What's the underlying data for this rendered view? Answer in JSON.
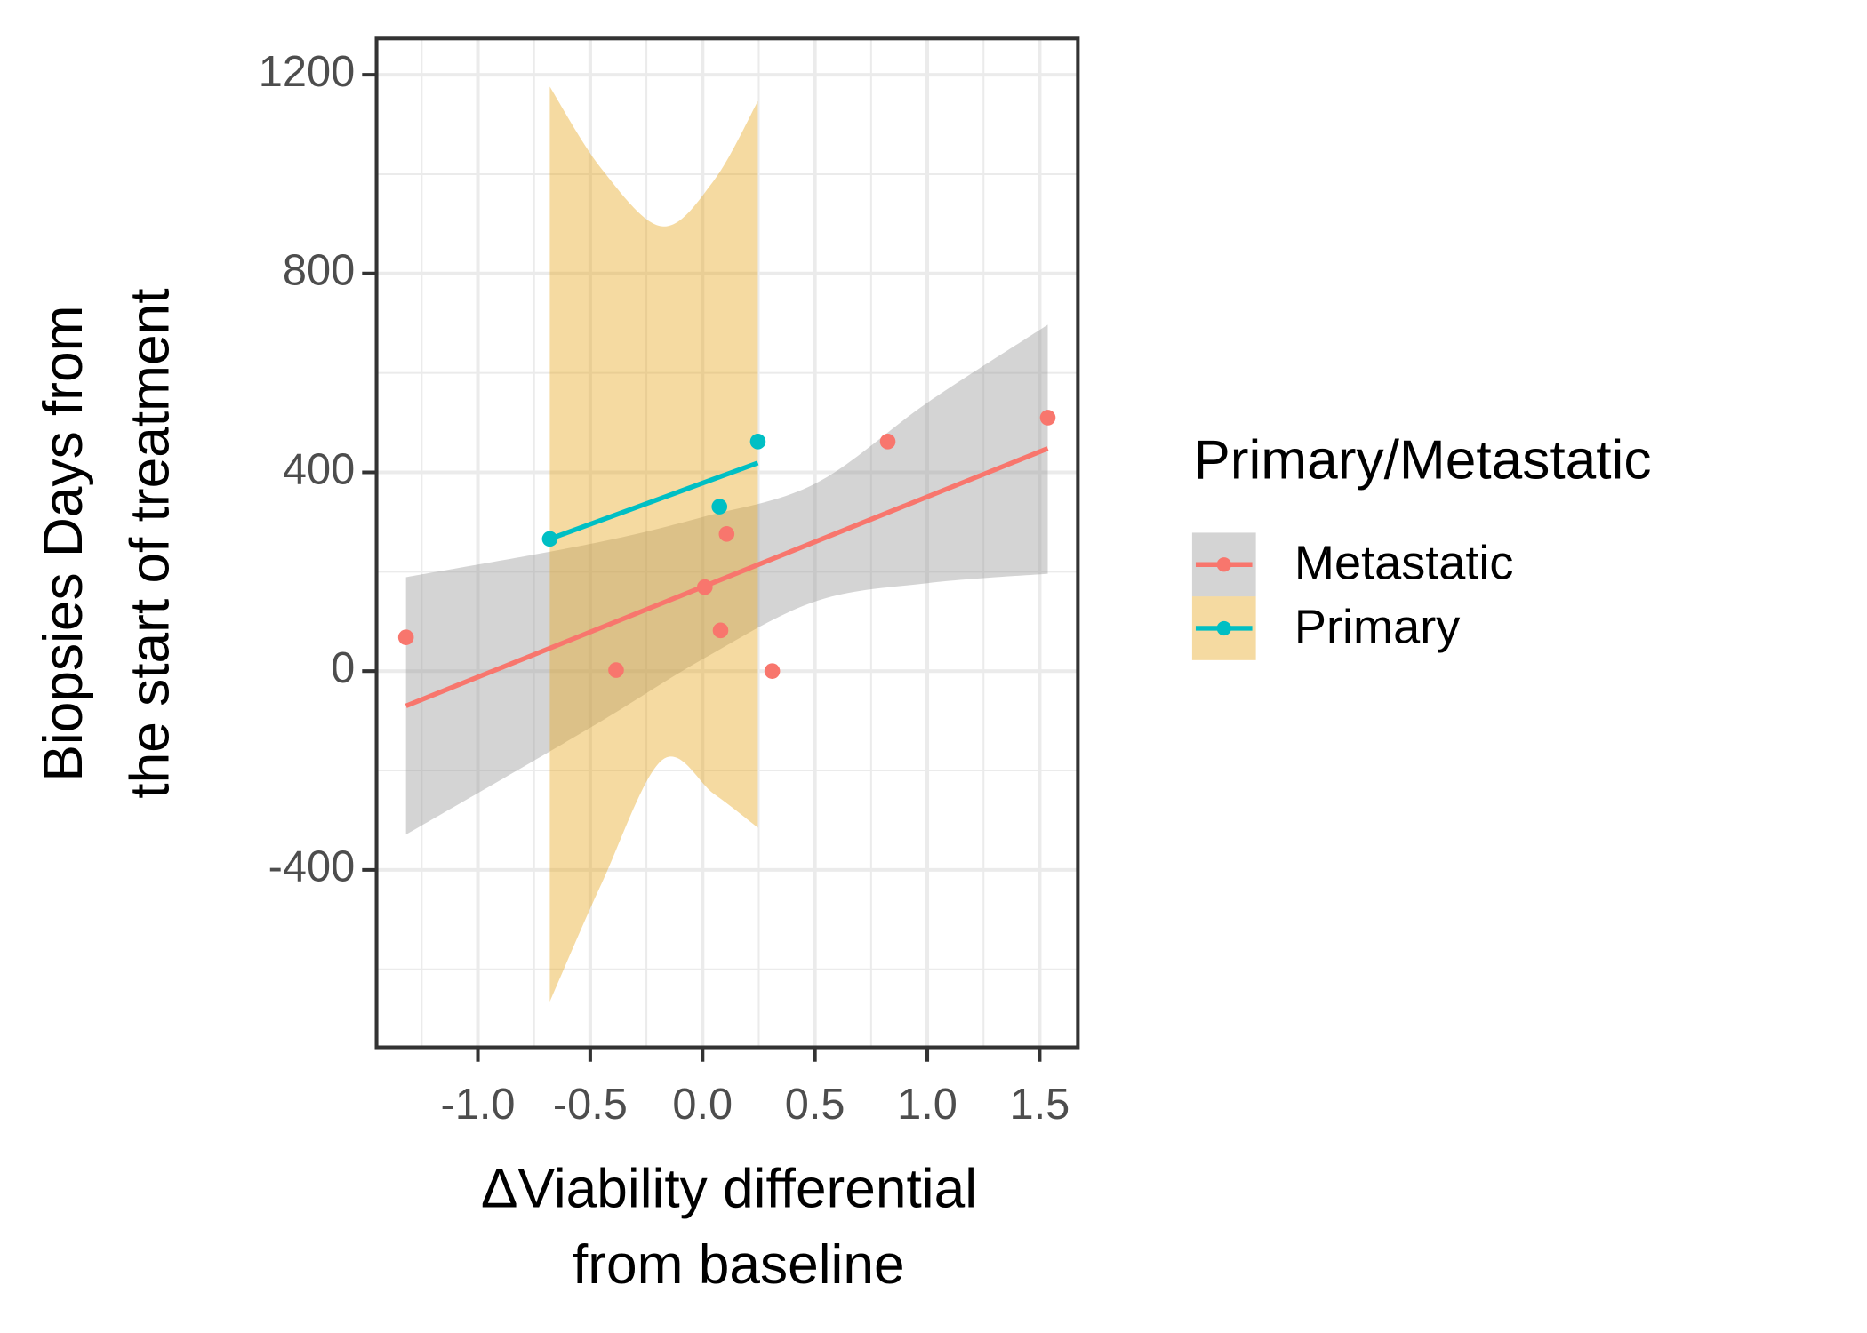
{
  "chart_data": {
    "type": "scatter",
    "xlabel": [
      "ΔViability differential",
      "from baseline"
    ],
    "ylabel": [
      "Biopsies Days from",
      "the start of treatment"
    ],
    "legend_title": "Primary/Metastatic",
    "legend_position": "right",
    "grid": true,
    "xlim": [
      -1.451,
      1.67
    ],
    "ylim": [
      -757,
      1273
    ],
    "xticks": [
      {
        "value": -1.0,
        "label": "-1.0"
      },
      {
        "value": -0.5,
        "label": "-0.5"
      },
      {
        "value": 0.0,
        "label": "0.0"
      },
      {
        "value": 0.5,
        "label": "0.5"
      },
      {
        "value": 1.0,
        "label": "1.0"
      },
      {
        "value": 1.5,
        "label": "1.5"
      }
    ],
    "yticks": [
      -400,
      0,
      400,
      800,
      1200
    ],
    "series": [
      {
        "name": "Metastatic",
        "color": "#F8766D",
        "band_color": "#999999",
        "x": [
          -1.32,
          -0.385,
          0.01,
          0.08,
          0.107,
          0.31,
          0.824,
          1.536
        ],
        "values": [
          68,
          2,
          169,
          82,
          276,
          0,
          462,
          510
        ],
        "fit": {
          "x": [
            -1.32,
            1.536
          ],
          "values": [
            -70,
            448
          ]
        },
        "band": {
          "x": [
            -1.32,
            -0.5,
            0.0,
            0.5,
            1.0,
            1.536
          ],
          "upper": [
            189,
            256,
            310,
            377,
            540,
            697
          ],
          "lower": [
            -329,
            -114,
            24,
            140,
            177,
            196
          ]
        }
      },
      {
        "name": "Primary",
        "color": "#00BFC4",
        "band_color": "#E8A820",
        "x": [
          -0.68,
          0.075,
          0.246
        ],
        "values": [
          266,
          331,
          462
        ],
        "fit": {
          "x": [
            -0.68,
            0.246
          ],
          "values": [
            266,
            419
          ]
        },
        "band": {
          "x": [
            -0.68,
            -0.45,
            -0.18,
            0.05,
            0.246
          ],
          "upper": [
            1176,
            1011,
            895,
            987,
            1147
          ],
          "lower": [
            -665,
            -428,
            -179,
            -247,
            -315
          ]
        }
      }
    ]
  }
}
